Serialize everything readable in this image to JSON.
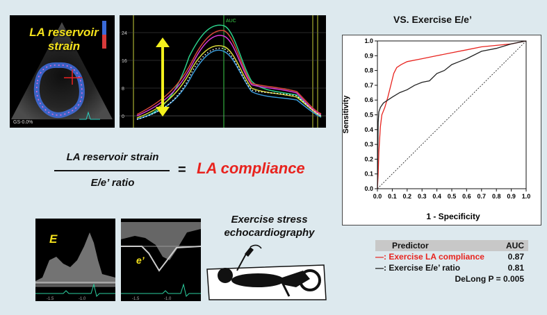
{
  "echo": {
    "title": "LA reservoir strain",
    "gs_label": "GS-0.0%"
  },
  "strain_plot": {
    "marker_label": "AUC",
    "y_ticks": [
      "24",
      "16",
      "8",
      "0"
    ]
  },
  "formula": {
    "numerator": "LA reservoir strain",
    "denominator": "E/e’ ratio",
    "equals": "=",
    "result": "LA compliance"
  },
  "doppler": {
    "e_label": "E",
    "eprime_label": "e’",
    "ticks_e": [
      "-1.5",
      "-1.0"
    ],
    "ticks_eprime": [
      "-1.5",
      "-1.0"
    ]
  },
  "exercise": {
    "title_line1": "Exercise stress",
    "title_line2": "echocardiography"
  },
  "chart_data": {
    "type": "line",
    "title": "VS. Exercise E/e’",
    "xlabel": "1 - Specificity",
    "ylabel": "Sensitivity",
    "xlim": [
      0,
      1
    ],
    "ylim": [
      0,
      1
    ],
    "ticks": [
      "0.0",
      "0.1",
      "0.2",
      "0.3",
      "0.4",
      "0.5",
      "0.6",
      "0.7",
      "0.8",
      "0.9",
      "1.0"
    ],
    "reference_line": true,
    "series": [
      {
        "name": "Exercise LA compliance",
        "color": "#e8231e",
        "x": [
          0,
          0.005,
          0.01,
          0.02,
          0.03,
          0.05,
          0.07,
          0.09,
          0.11,
          0.13,
          0.16,
          0.2,
          0.3,
          0.4,
          0.5,
          0.6,
          0.7,
          0.8,
          0.9,
          0.95,
          1.0
        ],
        "y": [
          0,
          0.1,
          0.25,
          0.42,
          0.5,
          0.55,
          0.62,
          0.7,
          0.78,
          0.82,
          0.84,
          0.86,
          0.88,
          0.9,
          0.92,
          0.94,
          0.96,
          0.97,
          0.98,
          0.99,
          1.0
        ]
      },
      {
        "name": "Exercise E/e’ ratio",
        "color": "#222222",
        "x": [
          0,
          0.005,
          0.01,
          0.02,
          0.04,
          0.07,
          0.1,
          0.15,
          0.2,
          0.25,
          0.3,
          0.35,
          0.4,
          0.45,
          0.5,
          0.55,
          0.6,
          0.7,
          0.8,
          0.9,
          1.0
        ],
        "y": [
          0,
          0.45,
          0.52,
          0.55,
          0.58,
          0.6,
          0.62,
          0.65,
          0.67,
          0.7,
          0.72,
          0.73,
          0.78,
          0.8,
          0.84,
          0.86,
          0.88,
          0.93,
          0.95,
          0.98,
          1.0
        ]
      }
    ]
  },
  "legend": {
    "header_predictor": "Predictor",
    "header_auc": "AUC",
    "rows": [
      {
        "prefix": "—:",
        "label": "Exercise LA compliance",
        "auc": "0.87",
        "color": "#e8231e"
      },
      {
        "prefix": "—:",
        "label": "Exercise E/e’ ratio",
        "auc": "0.81",
        "color": "#222222"
      }
    ],
    "delong": "DeLong P = 0.005"
  }
}
